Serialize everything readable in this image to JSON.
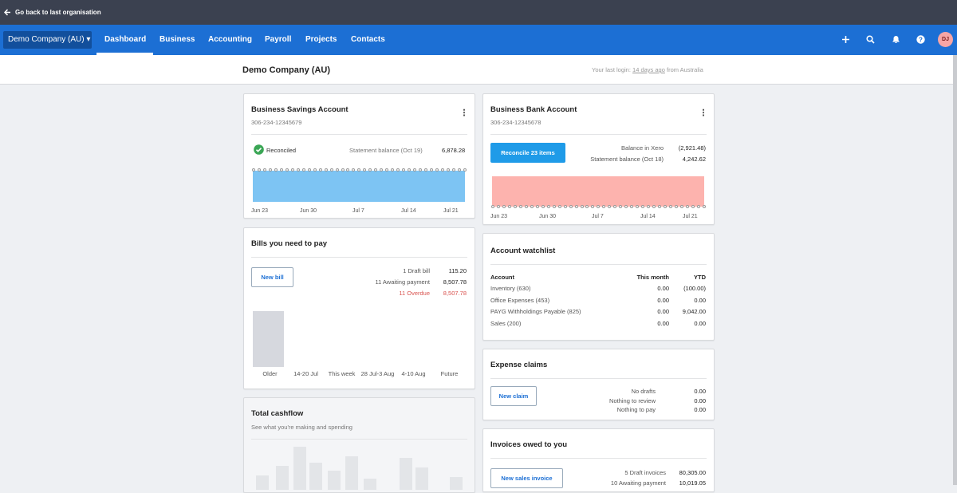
{
  "topbar": {
    "back": "Go back to last organisation"
  },
  "nav": {
    "org": "Demo Company (AU)",
    "items": [
      "Dashboard",
      "Business",
      "Accounting",
      "Payroll",
      "Projects",
      "Contacts"
    ],
    "avatar": "DJ"
  },
  "header": {
    "title": "Demo Company (AU)",
    "login_prefix": "Your last login:",
    "login_link": "14 days ago",
    "login_suffix": "from Australia"
  },
  "savings": {
    "title": "Business Savings Account",
    "number": "306-234-12345679",
    "status": "Reconciled",
    "balance_label": "Statement balance (Oct 19)",
    "balance": "6,878.28",
    "xlabels": [
      "Jun 23",
      "Jun 30",
      "Jul 7",
      "Jul 14",
      "Jul 21"
    ]
  },
  "bank": {
    "title": "Business Bank Account",
    "number": "306-234-12345678",
    "button": "Reconcile 23 items",
    "rows": [
      [
        "Balance in Xero",
        "(2,921.48)"
      ],
      [
        "Statement balance (Oct 18)",
        "4,242.62"
      ]
    ],
    "xlabels": [
      "Jun 23",
      "Jun 30",
      "Jul 7",
      "Jul 14",
      "Jul 21"
    ]
  },
  "bills": {
    "title": "Bills you need to pay",
    "button": "New bill",
    "rows": [
      [
        "1 Draft bill",
        "115.20"
      ],
      [
        "11 Awaiting payment",
        "8,507.78"
      ],
      [
        "11 Overdue",
        "8,507.78"
      ]
    ],
    "categories": [
      "Older",
      "14-20 Jul",
      "This week",
      "28 Jul-3 Aug",
      "4-10 Aug",
      "Future"
    ],
    "values": [
      8507.78,
      0,
      0,
      0,
      0,
      0
    ]
  },
  "cashflow": {
    "title": "Total cashflow",
    "subtitle": "See what you're making and spending"
  },
  "watchlist": {
    "title": "Account watchlist",
    "columns": [
      "Account",
      "This month",
      "YTD"
    ],
    "rows": [
      [
        "Inventory (630)",
        "0.00",
        "(100.00)"
      ],
      [
        "Office Expenses (453)",
        "0.00",
        "0.00"
      ],
      [
        "PAYG Withholdings Payable (825)",
        "0.00",
        "9,042.00"
      ],
      [
        "Sales (200)",
        "0.00",
        "0.00"
      ]
    ]
  },
  "expenses": {
    "title": "Expense claims",
    "button": "New claim",
    "rows": [
      [
        "No drafts",
        "0.00"
      ],
      [
        "Nothing to review",
        "0.00"
      ],
      [
        "Nothing to pay",
        "0.00"
      ]
    ]
  },
  "invoices": {
    "title": "Invoices owed to you",
    "button": "New sales invoice",
    "rows": [
      [
        "5 Draft invoices",
        "80,305.00"
      ],
      [
        "10 Awaiting payment",
        "10,019.05"
      ]
    ]
  }
}
